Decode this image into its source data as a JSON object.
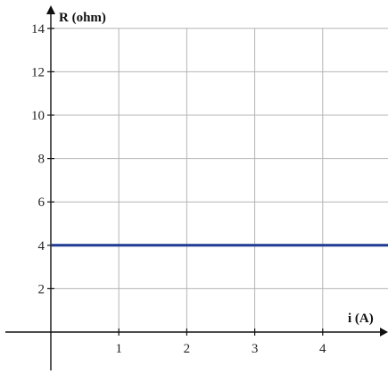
{
  "chart_data": {
    "type": "line",
    "title": "",
    "xlabel": "i (A)",
    "ylabel": "R (ohm)",
    "xlim": [
      0,
      5
    ],
    "ylim": [
      0,
      14
    ],
    "x_ticks": [
      1,
      2,
      3,
      4
    ],
    "y_ticks": [
      2,
      4,
      6,
      8,
      10,
      12,
      14
    ],
    "x_tick_labels": [
      "1",
      "2",
      "3",
      "4"
    ],
    "y_tick_labels": [
      "2",
      "4",
      "6",
      "8",
      "10",
      "12",
      "14"
    ],
    "grid": true,
    "series": [
      {
        "x": [
          0,
          5
        ],
        "y": [
          4,
          4
        ],
        "color": "#1f3a93"
      }
    ]
  }
}
